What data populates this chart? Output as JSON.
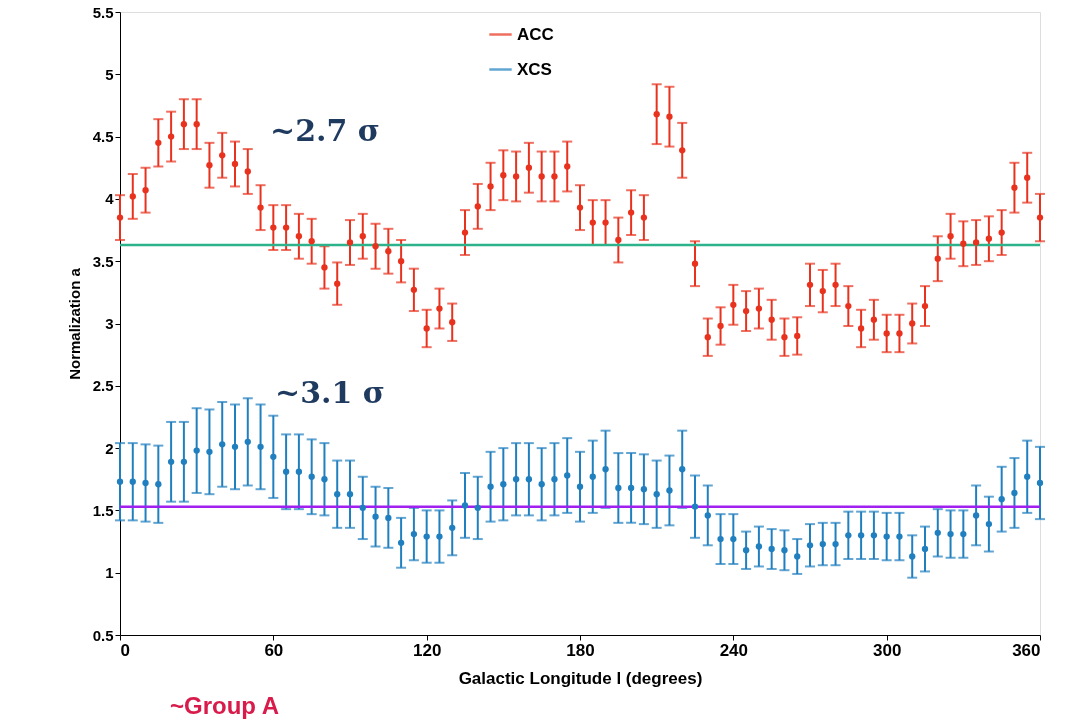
{
  "chart_data": {
    "type": "scatter",
    "xlabel": "Galactic Longitude l (degrees)",
    "ylabel": "Normalization a",
    "x": [
      0,
      5,
      10,
      15,
      20,
      25,
      30,
      35,
      40,
      45,
      50,
      55,
      60,
      65,
      70,
      75,
      80,
      85,
      90,
      95,
      100,
      105,
      110,
      115,
      120,
      125,
      130,
      135,
      140,
      145,
      150,
      155,
      160,
      165,
      170,
      175,
      180,
      185,
      190,
      195,
      200,
      205,
      210,
      215,
      220,
      225,
      230,
      235,
      240,
      245,
      250,
      255,
      260,
      265,
      270,
      275,
      280,
      285,
      290,
      295,
      300,
      305,
      310,
      315,
      320,
      325,
      330,
      335,
      340,
      345,
      350,
      355,
      360
    ],
    "series": [
      {
        "name": "ACC",
        "color": "#e8321e",
        "values": [
          3.85,
          4.02,
          4.07,
          4.45,
          4.5,
          4.6,
          4.6,
          4.27,
          4.35,
          4.28,
          4.22,
          3.93,
          3.77,
          3.77,
          3.7,
          3.66,
          3.45,
          3.32,
          3.65,
          3.7,
          3.62,
          3.58,
          3.5,
          3.27,
          2.96,
          3.12,
          3.01,
          3.73,
          3.94,
          4.1,
          4.19,
          4.18,
          4.25,
          4.18,
          4.18,
          4.26,
          3.93,
          3.81,
          3.81,
          3.67,
          3.89,
          3.85,
          4.68,
          4.66,
          4.39,
          3.48,
          2.89,
          2.98,
          3.15,
          3.1,
          3.12,
          3.03,
          2.89,
          2.9,
          3.31,
          3.26,
          3.31,
          3.14,
          2.96,
          3.03,
          2.92,
          2.92,
          3.0,
          3.14,
          3.52,
          3.7,
          3.64,
          3.65,
          3.68,
          3.73,
          4.09,
          4.17,
          3.85
        ],
        "errors": [
          0.18,
          0.18,
          0.18,
          0.19,
          0.2,
          0.2,
          0.2,
          0.18,
          0.18,
          0.18,
          0.18,
          0.18,
          0.18,
          0.18,
          0.18,
          0.18,
          0.17,
          0.17,
          0.18,
          0.18,
          0.18,
          0.18,
          0.17,
          0.17,
          0.15,
          0.16,
          0.15,
          0.18,
          0.18,
          0.19,
          0.2,
          0.2,
          0.2,
          0.2,
          0.2,
          0.2,
          0.18,
          0.18,
          0.18,
          0.18,
          0.18,
          0.18,
          0.24,
          0.24,
          0.22,
          0.18,
          0.15,
          0.15,
          0.16,
          0.16,
          0.16,
          0.16,
          0.15,
          0.15,
          0.17,
          0.17,
          0.17,
          0.16,
          0.15,
          0.16,
          0.15,
          0.15,
          0.16,
          0.16,
          0.18,
          0.18,
          0.18,
          0.18,
          0.18,
          0.18,
          0.2,
          0.2,
          0.19
        ]
      },
      {
        "name": "XCS",
        "color": "#1f7fbf",
        "values": [
          1.73,
          1.73,
          1.72,
          1.71,
          1.89,
          1.89,
          1.98,
          1.97,
          2.03,
          2.01,
          2.05,
          2.01,
          1.93,
          1.81,
          1.81,
          1.77,
          1.75,
          1.63,
          1.63,
          1.52,
          1.45,
          1.44,
          1.24,
          1.31,
          1.29,
          1.29,
          1.36,
          1.54,
          1.52,
          1.69,
          1.71,
          1.75,
          1.75,
          1.71,
          1.75,
          1.78,
          1.69,
          1.77,
          1.83,
          1.68,
          1.68,
          1.67,
          1.63,
          1.66,
          1.83,
          1.53,
          1.46,
          1.27,
          1.27,
          1.18,
          1.21,
          1.19,
          1.18,
          1.13,
          1.22,
          1.23,
          1.23,
          1.3,
          1.3,
          1.3,
          1.29,
          1.29,
          1.13,
          1.19,
          1.32,
          1.31,
          1.31,
          1.46,
          1.39,
          1.59,
          1.64,
          1.77,
          1.72
        ],
        "errors": [
          0.31,
          0.31,
          0.31,
          0.31,
          0.32,
          0.32,
          0.34,
          0.34,
          0.34,
          0.34,
          0.35,
          0.34,
          0.33,
          0.3,
          0.3,
          0.3,
          0.29,
          0.27,
          0.27,
          0.25,
          0.24,
          0.24,
          0.2,
          0.21,
          0.21,
          0.21,
          0.22,
          0.26,
          0.25,
          0.28,
          0.29,
          0.29,
          0.29,
          0.29,
          0.29,
          0.3,
          0.28,
          0.29,
          0.31,
          0.28,
          0.28,
          0.28,
          0.27,
          0.28,
          0.31,
          0.25,
          0.24,
          0.2,
          0.2,
          0.15,
          0.16,
          0.16,
          0.16,
          0.14,
          0.17,
          0.17,
          0.17,
          0.19,
          0.19,
          0.19,
          0.19,
          0.19,
          0.17,
          0.18,
          0.19,
          0.19,
          0.19,
          0.24,
          0.22,
          0.26,
          0.28,
          0.29,
          0.29
        ]
      }
    ],
    "xlim": [
      0,
      360
    ],
    "xticks": [
      0,
      60,
      120,
      180,
      240,
      300,
      360
    ],
    "ylim": [
      0.5,
      5.5
    ],
    "yticks": [
      0.5,
      1,
      1.5,
      2,
      2.5,
      3,
      3.5,
      4,
      4.5,
      5,
      5.5
    ],
    "ref_lines": [
      {
        "axis": "y",
        "value": 3.63,
        "color": "#2db38b"
      },
      {
        "axis": "y",
        "value": 1.53,
        "color": "#a020f0"
      }
    ],
    "annotations": [
      "~2.7 σ",
      "~3.1 σ",
      "~Group A"
    ],
    "grid": false,
    "legend": "top",
    "marker": "circle"
  }
}
